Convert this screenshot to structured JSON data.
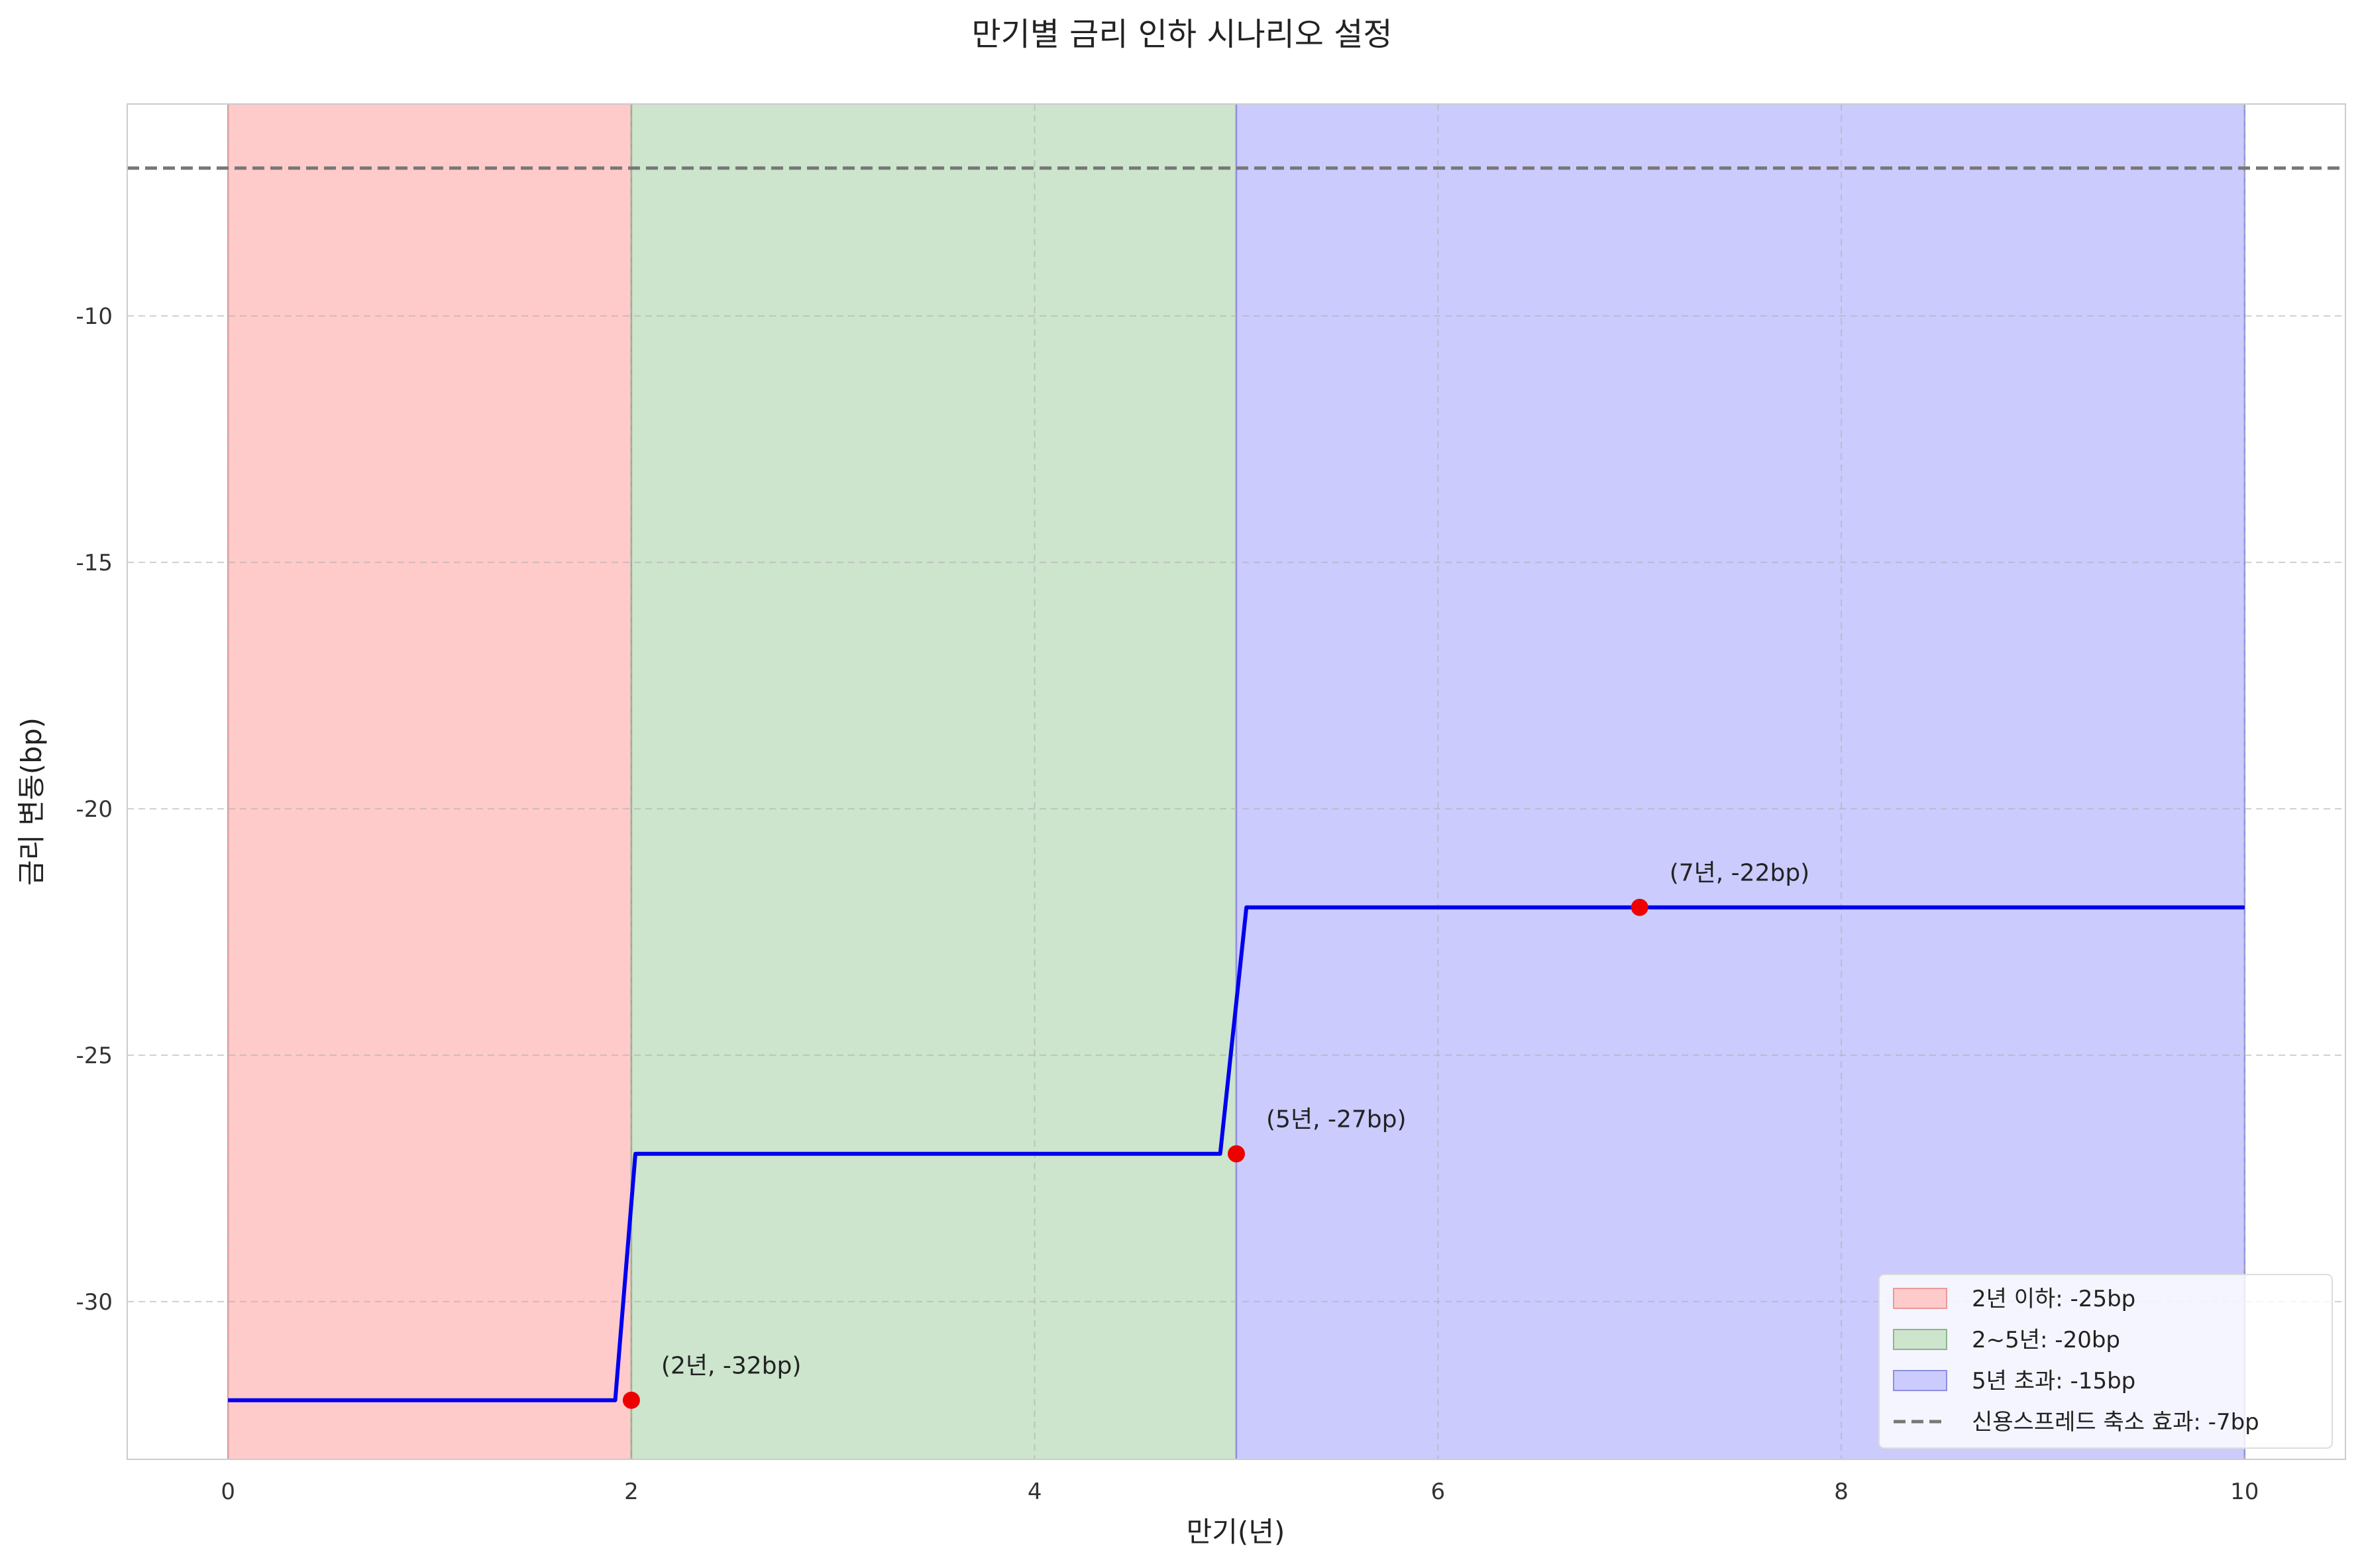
{
  "chart_data": {
    "type": "line",
    "title": "만기별 금리 인하 시나리오 설정",
    "xlabel": "만기(년)",
    "ylabel": "금리 변동(bp)",
    "xlim": [
      -0.5,
      10.5
    ],
    "ylim": [
      -33.2,
      -5.7
    ],
    "xticks": [
      0,
      2,
      4,
      6,
      8,
      10
    ],
    "yticks": [
      -30,
      -25,
      -20,
      -15,
      -10
    ],
    "grid": true,
    "legend_position": "lower-right",
    "regions": [
      {
        "name": "2년 이하: -25bp",
        "x_start": 0,
        "x_end": 2,
        "color": "#ffcaca"
      },
      {
        "name": "2~5년: -20bp",
        "x_start": 2,
        "x_end": 5,
        "color": "#cde4cd"
      },
      {
        "name": "5년 초과: -15bp",
        "x_start": 5,
        "x_end": 10,
        "color": "#cbcbfe"
      }
    ],
    "reference_line": {
      "name": "신용스프레드 축소 효과: -7bp",
      "y": -7,
      "color": "#777777"
    },
    "series": [
      {
        "color": "#0000ee",
        "x": [
          0,
          1.92,
          2.02,
          4.92,
          5.05,
          10
        ],
        "values": [
          -32,
          -32,
          -27,
          -27,
          -22,
          -22
        ]
      }
    ],
    "points": [
      {
        "x": 2,
        "y": -32,
        "label": "(2년, -32bp)"
      },
      {
        "x": 5,
        "y": -27,
        "label": "(5년, -27bp)"
      },
      {
        "x": 7,
        "y": -22,
        "label": "(7년, -22bp)"
      }
    ],
    "point_color": "#ee0000"
  }
}
